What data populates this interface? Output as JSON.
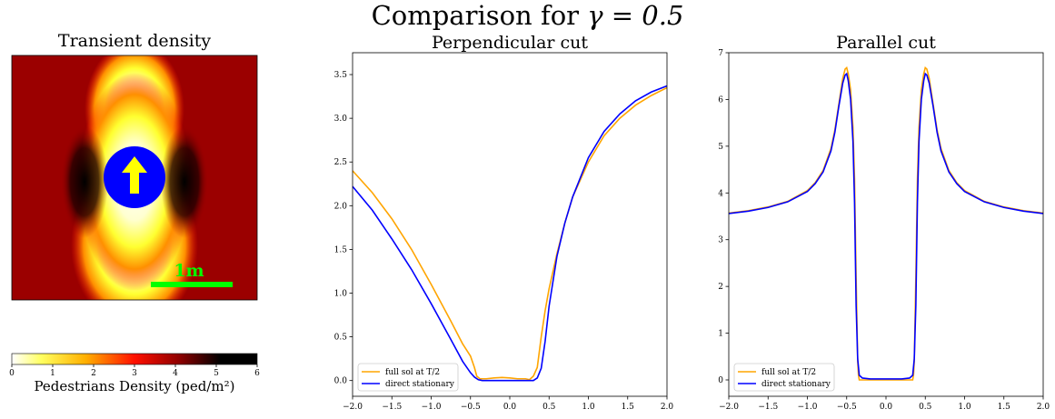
{
  "figure": {
    "title_text": "Comparison for ",
    "title_math": "γ = 0.5"
  },
  "heatmap": {
    "title": "Transient density",
    "scale_label": "1m",
    "colorbar_label": "Pedestrians Density (ped/m²)",
    "colorbar_ticks": [
      "0",
      "1",
      "2",
      "3",
      "4",
      "5",
      "6"
    ],
    "colors": {
      "scale_bar": "#00ff00",
      "obstacle": "#0000ff",
      "arrow": "#ffff00",
      "background": "#9b0000"
    }
  },
  "chart_data": [
    {
      "type": "line",
      "title": "Perpendicular cut",
      "xlim": [
        -2.0,
        2.0
      ],
      "ylim": [
        -0.18,
        3.75
      ],
      "xticks": [
        -2.0,
        -1.5,
        -1.0,
        -0.5,
        0.0,
        0.5,
        1.0,
        1.5,
        2.0
      ],
      "yticks": [
        0.0,
        0.5,
        1.0,
        1.5,
        2.0,
        2.5,
        3.0,
        3.5
      ],
      "legend_position": "lower-left",
      "series": [
        {
          "name": "full sol at T/2",
          "color": "#ffa500",
          "x": [
            -2.0,
            -1.75,
            -1.5,
            -1.25,
            -1.0,
            -0.75,
            -0.6,
            -0.5,
            -0.45,
            -0.42,
            -0.38,
            -0.3,
            -0.2,
            -0.1,
            0.0,
            0.1,
            0.2,
            0.25,
            0.3,
            0.35,
            0.4,
            0.45,
            0.5,
            0.6,
            0.7,
            0.8,
            1.0,
            1.2,
            1.4,
            1.6,
            1.8,
            2.0
          ],
          "y": [
            2.4,
            2.15,
            1.85,
            1.5,
            1.1,
            0.68,
            0.42,
            0.28,
            0.15,
            0.05,
            0.02,
            0.02,
            0.03,
            0.035,
            0.03,
            0.02,
            0.02,
            0.01,
            0.05,
            0.15,
            0.5,
            0.8,
            1.05,
            1.45,
            1.8,
            2.1,
            2.5,
            2.8,
            3.0,
            3.15,
            3.26,
            3.35
          ]
        },
        {
          "name": "direct stationary",
          "color": "#0000ff",
          "x": [
            -2.0,
            -1.75,
            -1.5,
            -1.25,
            -1.0,
            -0.75,
            -0.6,
            -0.5,
            -0.45,
            -0.4,
            -0.35,
            -0.3,
            -0.2,
            -0.1,
            0.0,
            0.1,
            0.2,
            0.3,
            0.35,
            0.4,
            0.45,
            0.5,
            0.6,
            0.7,
            0.8,
            1.0,
            1.2,
            1.4,
            1.6,
            1.8,
            2.0
          ],
          "y": [
            2.22,
            1.95,
            1.62,
            1.27,
            0.88,
            0.47,
            0.22,
            0.09,
            0.04,
            0.01,
            0.0,
            0.0,
            0.0,
            0.0,
            0.0,
            0.0,
            0.0,
            0.0,
            0.03,
            0.14,
            0.45,
            0.85,
            1.42,
            1.8,
            2.1,
            2.55,
            2.85,
            3.05,
            3.2,
            3.3,
            3.37
          ]
        }
      ]
    },
    {
      "type": "line",
      "title": "Parallel cut",
      "xlim": [
        -2.0,
        2.0
      ],
      "ylim": [
        -0.35,
        7.0
      ],
      "xticks": [
        -2.0,
        -1.5,
        -1.0,
        -0.5,
        0.0,
        0.5,
        1.0,
        1.5,
        2.0
      ],
      "yticks": [
        0,
        1,
        2,
        3,
        4,
        5,
        6,
        7
      ],
      "legend_position": "lower-left",
      "series": [
        {
          "name": "full sol at T/2",
          "color": "#ffa500",
          "x": [
            -2.0,
            -1.75,
            -1.5,
            -1.25,
            -1.0,
            -0.9,
            -0.8,
            -0.7,
            -0.65,
            -0.6,
            -0.55,
            -0.52,
            -0.5,
            -0.48,
            -0.45,
            -0.42,
            -0.4,
            -0.38,
            -0.36,
            -0.35,
            -0.34,
            0.34,
            0.35,
            0.36,
            0.38,
            0.4,
            0.42,
            0.45,
            0.48,
            0.5,
            0.52,
            0.55,
            0.6,
            0.65,
            0.7,
            0.8,
            0.9,
            1.0,
            1.25,
            1.5,
            1.75,
            2.0
          ],
          "y": [
            3.57,
            3.62,
            3.7,
            3.82,
            4.05,
            4.22,
            4.48,
            4.95,
            5.35,
            5.9,
            6.45,
            6.65,
            6.68,
            6.55,
            6.2,
            5.4,
            4.3,
            2.2,
            0.4,
            0.1,
            0.0,
            0.0,
            0.1,
            0.4,
            2.2,
            4.3,
            5.4,
            6.2,
            6.55,
            6.68,
            6.65,
            6.45,
            5.9,
            5.35,
            4.95,
            4.48,
            4.22,
            4.05,
            3.82,
            3.7,
            3.62,
            3.57
          ]
        },
        {
          "name": "direct stationary",
          "color": "#0000ff",
          "x": [
            -2.0,
            -1.75,
            -1.5,
            -1.25,
            -1.0,
            -0.9,
            -0.8,
            -0.7,
            -0.65,
            -0.6,
            -0.55,
            -0.52,
            -0.5,
            -0.48,
            -0.45,
            -0.42,
            -0.4,
            -0.38,
            -0.36,
            -0.34,
            -0.3,
            -0.2,
            0.0,
            0.2,
            0.3,
            0.34,
            0.36,
            0.38,
            0.4,
            0.42,
            0.45,
            0.48,
            0.5,
            0.52,
            0.55,
            0.6,
            0.65,
            0.7,
            0.8,
            0.9,
            1.0,
            1.25,
            1.5,
            1.75,
            2.0
          ],
          "y": [
            3.56,
            3.61,
            3.69,
            3.81,
            4.03,
            4.2,
            4.45,
            4.9,
            5.3,
            5.85,
            6.35,
            6.52,
            6.55,
            6.4,
            6.0,
            5.1,
            3.8,
            1.6,
            0.45,
            0.1,
            0.04,
            0.02,
            0.02,
            0.02,
            0.04,
            0.1,
            0.45,
            1.6,
            3.8,
            5.1,
            6.0,
            6.4,
            6.55,
            6.52,
            6.35,
            5.85,
            5.3,
            4.9,
            4.45,
            4.2,
            4.03,
            3.81,
            3.69,
            3.61,
            3.56
          ]
        }
      ]
    }
  ]
}
